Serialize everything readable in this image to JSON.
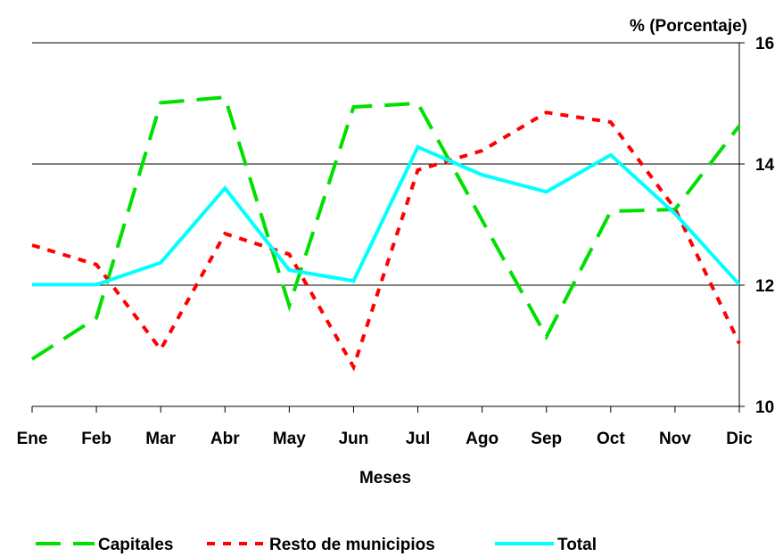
{
  "chart_data": {
    "type": "line",
    "axis_title": "% (Porcentaje)",
    "x_label": "Meses",
    "categories": [
      "Ene",
      "Feb",
      "Mar",
      "Abr",
      "May",
      "Jun",
      "Jul",
      "Ago",
      "Sep",
      "Oct",
      "Nov",
      "Dic"
    ],
    "series": [
      {
        "name": "Capitales",
        "color": "#00e000",
        "style": "long-dash",
        "values": [
          10.78,
          11.46,
          15.01,
          15.1,
          11.66,
          14.94,
          15.0,
          13.07,
          11.15,
          13.22,
          13.25,
          14.63
        ]
      },
      {
        "name": "Resto de municipios",
        "color": "#ff0000",
        "style": "short-dash",
        "values": [
          12.66,
          12.34,
          10.94,
          12.85,
          12.51,
          10.65,
          13.9,
          14.22,
          14.85,
          14.69,
          13.26,
          11.04
        ]
      },
      {
        "name": "Total",
        "color": "#00ffff",
        "style": "solid",
        "values": [
          12.01,
          12.01,
          12.37,
          13.6,
          12.25,
          12.07,
          14.28,
          13.82,
          13.54,
          14.15,
          13.18,
          12.01
        ]
      }
    ],
    "ylim": [
      10,
      16
    ],
    "yticks": [
      10,
      12,
      14,
      16
    ],
    "y_axis_side": "right",
    "grid": true,
    "legend": "bottom"
  }
}
